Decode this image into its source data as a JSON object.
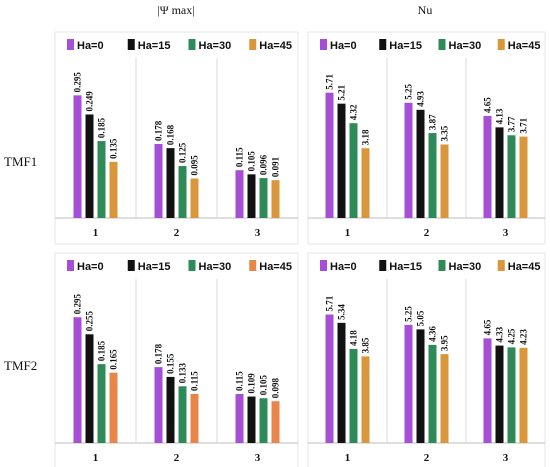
{
  "header": {
    "left_title": "|Ψ max|",
    "right_title": "Nu"
  },
  "rows": [
    "TMF1",
    "TMF2"
  ],
  "colors": {
    "Ha=0": "#a64fd6",
    "Ha=15": "#111111",
    "Ha=30": "#2e8b57",
    "Ha=45": "#d9963a",
    "tmf2_psi_Ha=45": "#e8864a"
  },
  "chart_data": [
    {
      "id": "psi_tmf1",
      "type": "bar",
      "title": "|Ψ max|",
      "categories": [
        "1",
        "2",
        "3"
      ],
      "series": [
        {
          "name": "Ha=0",
          "values": [
            0.295,
            0.178,
            0.115
          ]
        },
        {
          "name": "Ha=15",
          "values": [
            0.249,
            0.168,
            0.105
          ]
        },
        {
          "name": "Ha=30",
          "values": [
            0.185,
            0.125,
            0.096
          ]
        },
        {
          "name": "Ha=45",
          "values": [
            0.135,
            0.095,
            0.091
          ]
        }
      ],
      "data_labels": [
        [
          "0.295",
          "0.249",
          "0.185",
          "0.135"
        ],
        [
          "0.178",
          "0.168",
          "0.125",
          "0.095"
        ],
        [
          "0.115",
          "0.105",
          "0.096",
          "0.091"
        ]
      ],
      "ylim": [
        0,
        0.38
      ],
      "legend": "top",
      "grid": false
    },
    {
      "id": "nu_tmf1",
      "type": "bar",
      "title": "Nu",
      "categories": [
        "1",
        "2",
        "3"
      ],
      "series": [
        {
          "name": "Ha=0",
          "values": [
            5.71,
            5.25,
            4.65
          ]
        },
        {
          "name": "Ha=15",
          "values": [
            5.21,
            4.93,
            4.13
          ]
        },
        {
          "name": "Ha=30",
          "values": [
            4.32,
            3.87,
            3.77
          ]
        },
        {
          "name": "Ha=45",
          "values": [
            3.18,
            3.35,
            3.71
          ]
        }
      ],
      "data_labels": [
        [
          "5.71",
          "5.21",
          "4.32",
          "3.18"
        ],
        [
          "5.25",
          "4.93",
          "3.87",
          "3.35"
        ],
        [
          "4.65",
          "4.13",
          "3.77",
          "3.71"
        ]
      ],
      "ylim": [
        0,
        7.2
      ],
      "legend": "top",
      "grid": false
    },
    {
      "id": "psi_tmf2",
      "type": "bar",
      "categories": [
        "1",
        "2",
        "3"
      ],
      "series": [
        {
          "name": "Ha=0",
          "values": [
            0.295,
            0.178,
            0.115
          ]
        },
        {
          "name": "Ha=15",
          "values": [
            0.255,
            0.155,
            0.109
          ]
        },
        {
          "name": "Ha=30",
          "values": [
            0.185,
            0.133,
            0.105
          ]
        },
        {
          "name": "Ha=45",
          "values": [
            0.165,
            0.115,
            0.098
          ]
        }
      ],
      "data_labels": [
        [
          "0.295",
          "0.255",
          "0.185",
          "0.165"
        ],
        [
          "0.178",
          "0.155",
          "0.133",
          "0.115"
        ],
        [
          "0.115",
          "0.109",
          "0.105",
          "0.098"
        ]
      ],
      "ylim": [
        0,
        0.38
      ],
      "legend": "top",
      "grid": false
    },
    {
      "id": "nu_tmf2",
      "type": "bar",
      "categories": [
        "1",
        "2",
        "3"
      ],
      "series": [
        {
          "name": "Ha=0",
          "values": [
            5.71,
            5.25,
            4.65
          ]
        },
        {
          "name": "Ha=15",
          "values": [
            5.34,
            5.05,
            4.33
          ]
        },
        {
          "name": "Ha=30",
          "values": [
            4.18,
            4.36,
            4.25
          ]
        },
        {
          "name": "Ha=45",
          "values": [
            3.85,
            3.95,
            4.23
          ]
        }
      ],
      "data_labels": [
        [
          "5.71",
          "5.34",
          "4.18",
          "3.85"
        ],
        [
          "5.25",
          "5.05",
          "4.36",
          "3.95"
        ],
        [
          "4.65",
          "4.33",
          "4.25",
          "4.23"
        ]
      ],
      "ylim": [
        0,
        7.2
      ],
      "legend": "top",
      "grid": false
    }
  ]
}
